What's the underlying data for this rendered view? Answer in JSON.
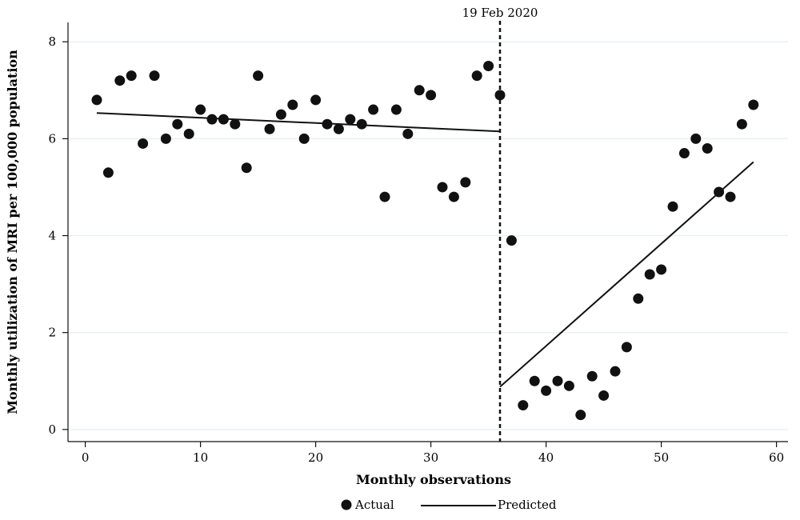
{
  "chart_data": {
    "type": "scatter",
    "title": "",
    "xlabel": "Monthly observations",
    "ylabel": "Monthly utilization of MRI per 100,000 population",
    "xlim": [
      -1.5,
      61
    ],
    "ylim": [
      -0.25,
      8.4
    ],
    "xticks": [
      0,
      10,
      20,
      30,
      40,
      50,
      60
    ],
    "yticks": [
      0,
      2,
      4,
      6,
      8
    ],
    "grid": true,
    "legend_placement": "bottom",
    "legend": [
      {
        "label": "Actual",
        "marker": "dot"
      },
      {
        "label": "Predicted",
        "marker": "line"
      }
    ],
    "annotation": {
      "label": "19 Feb 2020",
      "x": 36
    },
    "series": [
      {
        "name": "Actual",
        "type": "scatter",
        "x": [
          1,
          2,
          3,
          4,
          5,
          6,
          7,
          8,
          9,
          10,
          11,
          12,
          13,
          14,
          15,
          16,
          17,
          18,
          19,
          20,
          21,
          22,
          23,
          24,
          25,
          26,
          27,
          28,
          29,
          30,
          31,
          32,
          33,
          34,
          35,
          36,
          37,
          38,
          39,
          40,
          41,
          42,
          43,
          44,
          45,
          46,
          47,
          48,
          49,
          50,
          51,
          52,
          53,
          54,
          55,
          56,
          57,
          58
        ],
        "y": [
          6.8,
          5.3,
          7.2,
          7.3,
          5.9,
          7.3,
          6.0,
          6.3,
          6.1,
          6.6,
          6.4,
          6.4,
          6.3,
          5.4,
          7.3,
          6.2,
          6.5,
          6.7,
          6.0,
          6.8,
          6.3,
          6.2,
          6.4,
          6.3,
          6.6,
          4.8,
          6.6,
          6.1,
          7.0,
          6.9,
          5.0,
          4.8,
          5.1,
          7.3,
          7.5,
          6.9,
          3.9,
          0.5,
          1.0,
          0.8,
          1.0,
          0.9,
          0.3,
          1.1,
          0.7,
          1.2,
          1.7,
          2.7,
          3.2,
          3.3,
          4.6,
          5.7,
          6.0,
          5.8,
          4.9,
          4.8,
          6.3,
          6.7
        ]
      },
      {
        "name": "Predicted",
        "type": "line",
        "segments": [
          {
            "x": [
              1,
              36
            ],
            "y": [
              6.53,
              6.15
            ]
          },
          {
            "x": [
              36,
              58
            ],
            "y": [
              0.88,
              5.52
            ]
          }
        ]
      }
    ],
    "colors": {
      "marker": "#111111",
      "line": "#111111",
      "grid": "#e8f0f5"
    }
  }
}
